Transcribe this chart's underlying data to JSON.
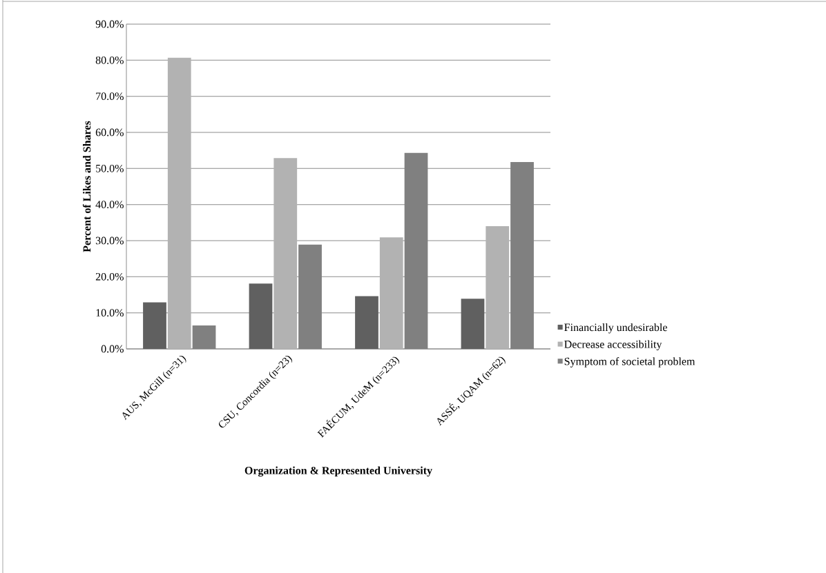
{
  "chart_data": {
    "type": "bar",
    "xlabel": "Organization & Represented University",
    "ylabel": "Percent of Likes and Shares",
    "categories": [
      "AUS, McGill (n=31)",
      "CSU, Concordia (n=23)",
      "FAÉCUM, UdeM (n=233)",
      "ASSÉ, UQAM (n=62)"
    ],
    "series": [
      {
        "name": "Financially undesirable",
        "color": "#606060",
        "values": [
          12.9,
          18.1,
          14.6,
          13.9
        ]
      },
      {
        "name": "Decrease accessibility",
        "color": "#b2b2b2",
        "values": [
          80.7,
          52.9,
          30.9,
          34.0
        ]
      },
      {
        "name": "Symptom of societal problem",
        "color": "#808080",
        "values": [
          6.5,
          28.9,
          54.3,
          51.8
        ]
      }
    ],
    "ylim": [
      0,
      90
    ],
    "yticks": [
      {
        "value": 0,
        "label": "0.0%"
      },
      {
        "value": 10,
        "label": "10.0%"
      },
      {
        "value": 20,
        "label": "20.0%"
      },
      {
        "value": 30,
        "label": "30.0%"
      },
      {
        "value": 40,
        "label": "40.0%"
      },
      {
        "value": 50,
        "label": "50.0%"
      },
      {
        "value": 60,
        "label": "60.0%"
      },
      {
        "value": 70,
        "label": "70.0%"
      },
      {
        "value": 80,
        "label": "80.0%"
      },
      {
        "value": 90,
        "label": "90.0%"
      }
    ],
    "grid": "y",
    "legend": "right"
  }
}
